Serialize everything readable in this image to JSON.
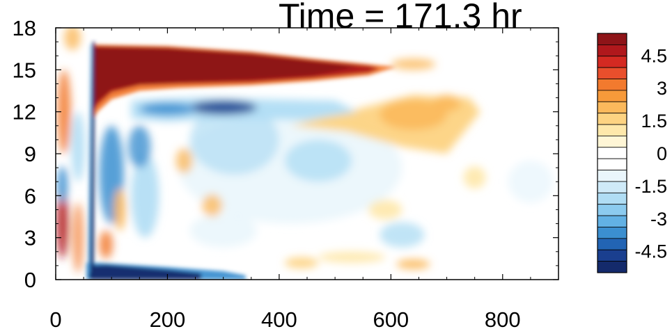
{
  "title": "Time = 171.3 hr",
  "chart_data": {
    "type": "heatmap",
    "title": "Time = 171.3 hr",
    "xlabel": "",
    "ylabel": "",
    "xlim": [
      0,
      900
    ],
    "ylim": [
      0,
      18
    ],
    "x_ticks": [
      0,
      200,
      400,
      600,
      800
    ],
    "y_ticks": [
      0,
      3,
      6,
      9,
      12,
      15,
      18
    ],
    "x_tick_labels": [
      "0",
      "200",
      "400",
      "600",
      "800"
    ],
    "y_tick_labels": [
      "0",
      "3",
      "6",
      "9",
      "12",
      "15",
      "18"
    ],
    "colorbar": {
      "levels": [
        -5.5,
        -5,
        -4.5,
        -4,
        -3.5,
        -3,
        -2.5,
        -2,
        -1.5,
        -1,
        -0.5,
        0,
        0.5,
        1,
        1.5,
        2,
        2.5,
        3,
        3.5,
        4,
        4.5,
        5,
        5.5
      ],
      "labels": [
        "4.5",
        "3",
        "1.5",
        "0",
        "-1.5",
        "-3",
        "-4.5"
      ],
      "label_values": [
        4.5,
        3,
        1.5,
        0,
        -1.5,
        -3,
        -4.5
      ],
      "colors_high_to_low": [
        "#8e1418",
        "#b0181c",
        "#d42a22",
        "#e94f2c",
        "#f27a2e",
        "#f79a3a",
        "#fbb95c",
        "#fdd382",
        "#fee8ab",
        "#fff6d6",
        "#ffffff",
        "#ffffff",
        "#eaf6fc",
        "#cfeaf8",
        "#b0ddf4",
        "#8ccbef",
        "#62b1e4",
        "#3b8fd0",
        "#2264b4",
        "#1a3f8f",
        "#142a6b"
      ]
    },
    "features": [
      {
        "name": "upper-positive-jet",
        "x_range": [
          68,
          600
        ],
        "y_center": 15.5,
        "peak_value": 5.5
      },
      {
        "name": "negative-band-below-jet",
        "x_range": [
          140,
          500
        ],
        "y_center": 12.2,
        "peak_value": -4.5
      },
      {
        "name": "positive-tongue",
        "x_range": [
          420,
          760
        ],
        "y_center": 11.8,
        "peak_value": 2.5
      },
      {
        "name": "surface-negative-band",
        "x_range": [
          60,
          340
        ],
        "y_center": 0.5,
        "peak_value": -5.5
      },
      {
        "name": "front-negative-wall",
        "x": 68,
        "y_range": [
          0,
          17
        ],
        "peak_value": -5.5
      }
    ]
  }
}
